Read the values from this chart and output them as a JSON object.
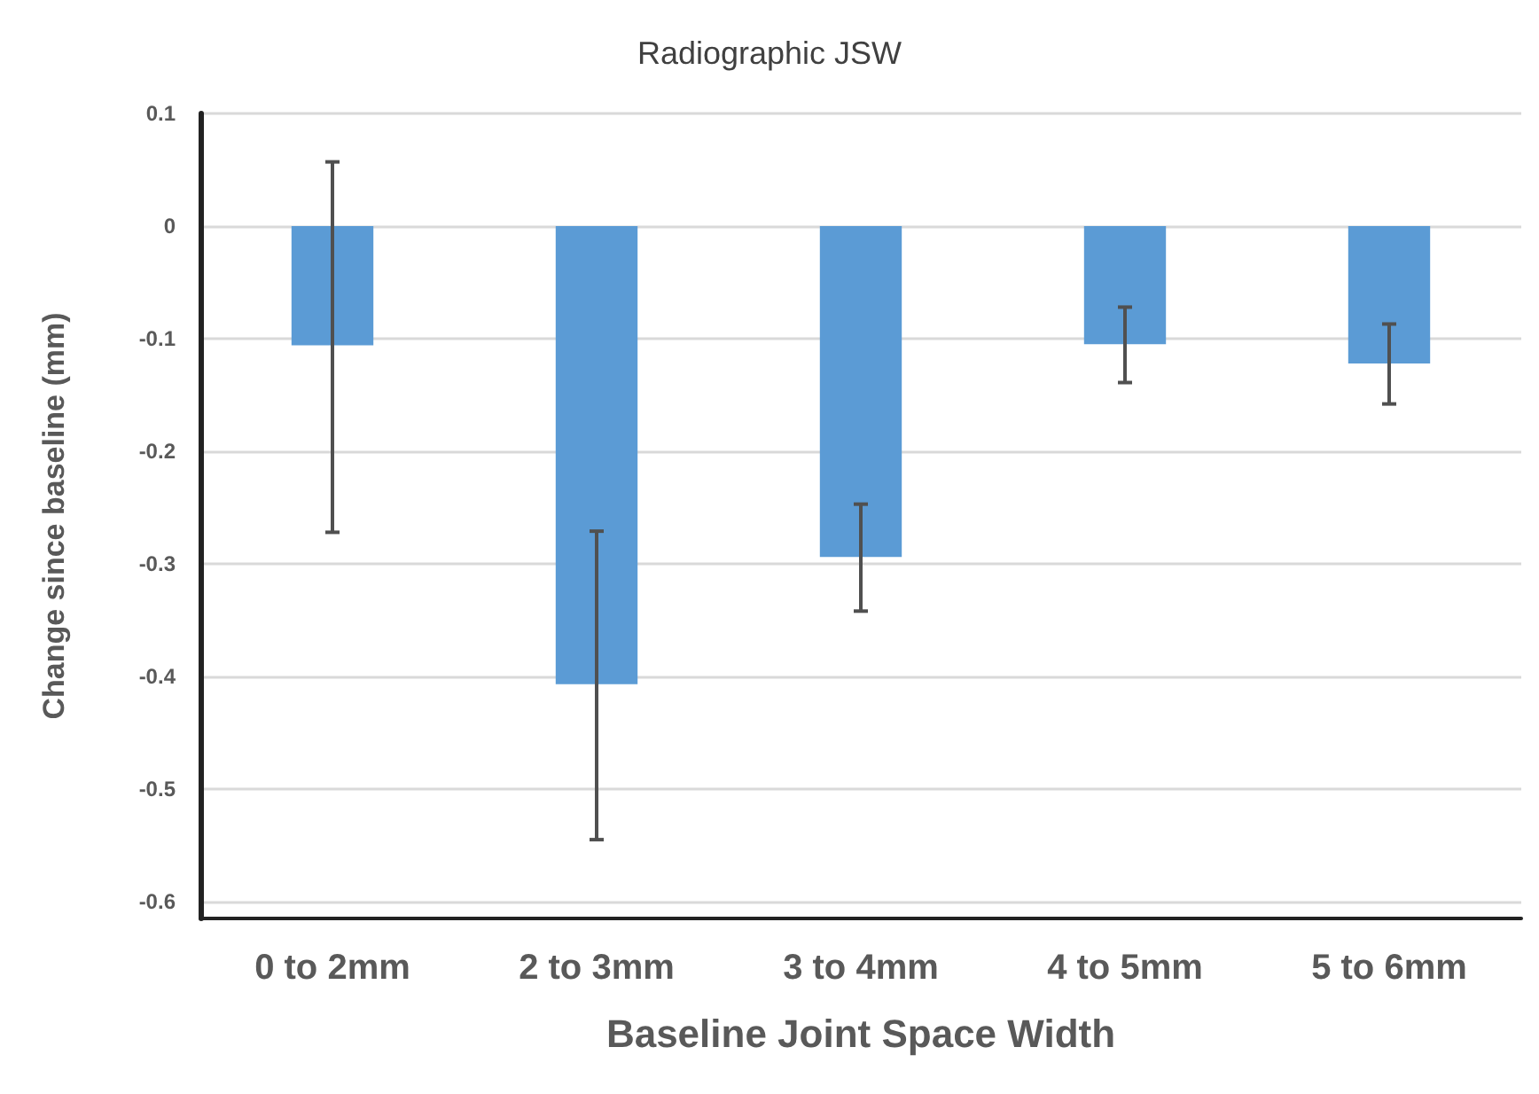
{
  "chart_data": {
    "type": "bar",
    "title": "Radiographic JSW",
    "xlabel": "Baseline Joint Space Width",
    "ylabel": "Change since baseline (mm)",
    "categories": [
      "0 to 2mm",
      "2 to 3mm",
      "3 to 4mm",
      "4 to 5mm",
      "5 to 6mm"
    ],
    "values": [
      -0.106,
      -0.407,
      -0.294,
      -0.105,
      -0.122
    ],
    "errors": [
      [
        -0.272,
        0.057
      ],
      [
        -0.545,
        -0.271
      ],
      [
        -0.342,
        -0.247
      ],
      [
        -0.139,
        -0.072
      ],
      [
        -0.158,
        -0.087
      ]
    ],
    "color": "#5b9bd5",
    "ylim": [
      -0.615,
      0.1
    ],
    "yticks": [
      0.1,
      0,
      -0.1,
      -0.2,
      -0.3,
      -0.4,
      -0.5,
      -0.6
    ],
    "grid": "y"
  }
}
